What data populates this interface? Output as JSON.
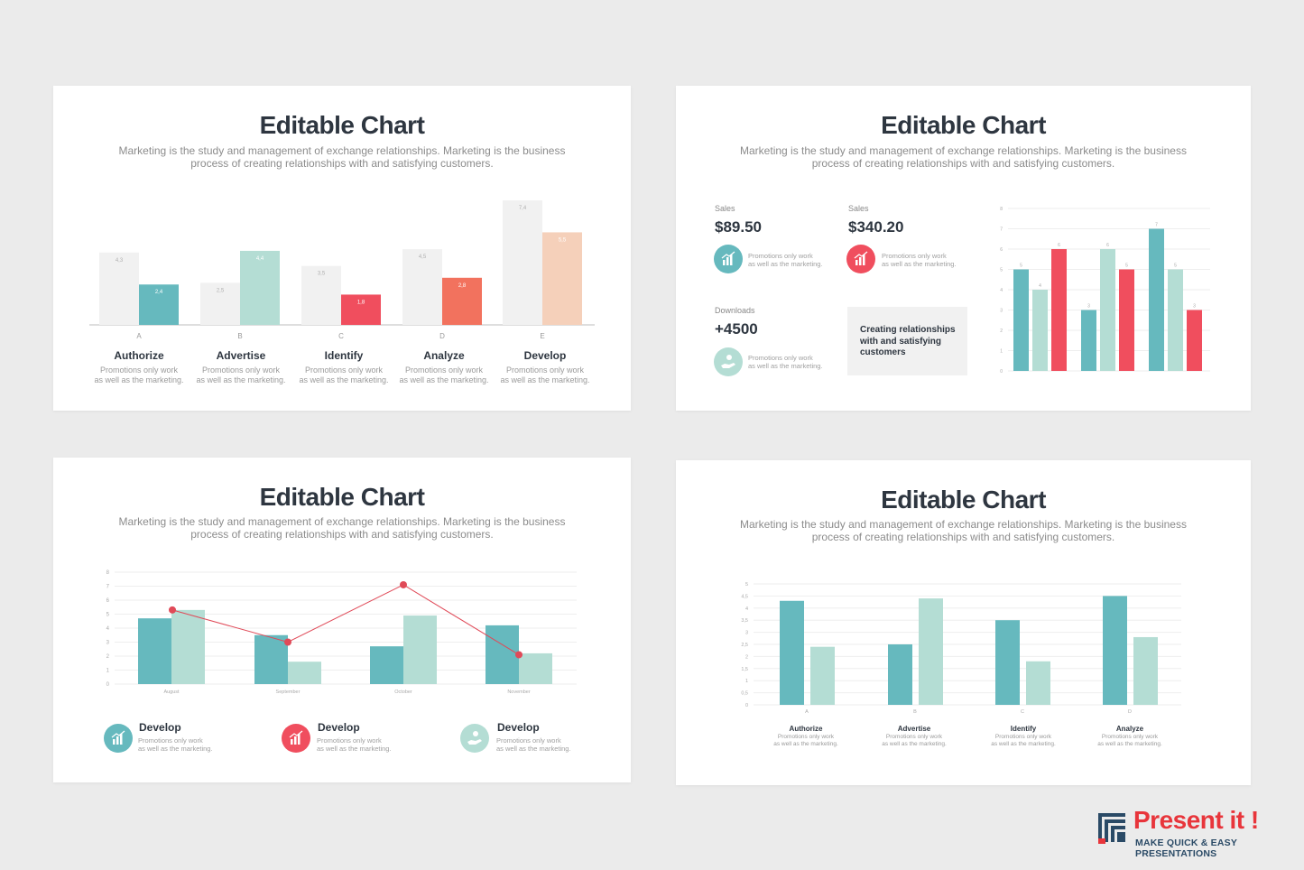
{
  "colors": {
    "teal": "#66b9be",
    "mint": "#b4ddd4",
    "red": "#f04e5e",
    "coral": "#f2725e",
    "peach": "#f5d0ba",
    "grey": "#f1f1f1",
    "line": "#e04a58"
  },
  "slide1": {
    "title": "Editable Chart",
    "subtitle1": "Marketing is the study and management of exchange relationships. Marketing is the business",
    "subtitle2": "process of creating relationships with and satisfying customers.",
    "items": [
      {
        "title": "Authorize",
        "desc1": "Promotions only work",
        "desc2": "as well as the marketing."
      },
      {
        "title": "Advertise",
        "desc1": "Promotions only work",
        "desc2": "as well as the marketing."
      },
      {
        "title": "Identify",
        "desc1": "Promotions only work",
        "desc2": "as well as the marketing."
      },
      {
        "title": "Analyze",
        "desc1": "Promotions only work",
        "desc2": "as well as the marketing."
      },
      {
        "title": "Develop",
        "desc1": "Promotions only work",
        "desc2": "as well as the marketing."
      }
    ]
  },
  "slide2": {
    "title": "Editable Chart",
    "subtitle1": "Marketing is the study and management of exchange relationships. Marketing is the business",
    "subtitle2": "process of creating relationships with and satisfying customers.",
    "stats": [
      {
        "label": "Sales",
        "value": "$89.50",
        "desc1": "Promotions only work",
        "desc2": "as well as the marketing.",
        "icon": "bar-chart-icon",
        "color": "teal"
      },
      {
        "label": "Sales",
        "value": "$340.20",
        "desc1": "Promotions only work",
        "desc2": "as well as the marketing.",
        "icon": "bar-chart-icon",
        "color": "red"
      },
      {
        "label": "Downloads",
        "value": "+4500",
        "desc1": "Promotions only work",
        "desc2": "as well as the marketing.",
        "icon": "hand-coin-icon",
        "color": "mint"
      }
    ],
    "box_text": "Creating relationships with and satisfying customers"
  },
  "slide3": {
    "title": "Editable Chart",
    "subtitle1": "Marketing is the study and management of exchange relationships. Marketing is the business",
    "subtitle2": "process of creating relationships with and satisfying customers.",
    "legend": [
      {
        "title": "Develop",
        "desc1": "Promotions only work",
        "desc2": "as well as the marketing.",
        "icon": "bar-chart-icon",
        "color": "teal"
      },
      {
        "title": "Develop",
        "desc1": "Promotions only work",
        "desc2": "as well as the marketing.",
        "icon": "bar-chart-icon",
        "color": "red"
      },
      {
        "title": "Develop",
        "desc1": "Promotions only work",
        "desc2": "as well as the marketing.",
        "icon": "hand-coin-icon",
        "color": "mint"
      }
    ]
  },
  "slide4": {
    "title": "Editable Chart",
    "subtitle1": "Marketing is the study and management of exchange relationships. Marketing is the business",
    "subtitle2": "process of creating relationships with and satisfying customers.",
    "items": [
      {
        "title": "Authorize",
        "desc1": "Promotions only work",
        "desc2": "as well as the marketing."
      },
      {
        "title": "Advertise",
        "desc1": "Promotions only work",
        "desc2": "as well as the marketing."
      },
      {
        "title": "Identify",
        "desc1": "Promotions only work",
        "desc2": "as well as the marketing."
      },
      {
        "title": "Analyze",
        "desc1": "Promotions only work",
        "desc2": "as well as the marketing."
      }
    ]
  },
  "logo": {
    "main": "Present it !",
    "tagline": "MAKE QUICK & EASY PRESENTATIONS"
  },
  "chart_data": [
    {
      "type": "bar",
      "categories": [
        "A",
        "B",
        "C",
        "D",
        "E"
      ],
      "series": [
        {
          "values": [
            4.3,
            2.5,
            3.5,
            4.5,
            7.4
          ],
          "colors": [
            "grey",
            "grey",
            "grey",
            "grey",
            "grey"
          ]
        },
        {
          "values": [
            2.4,
            4.4,
            1.8,
            2.8,
            5.5
          ],
          "colors": [
            "teal",
            "mint",
            "red",
            "coral",
            "peach"
          ]
        }
      ],
      "ylim": [
        0,
        7.4
      ],
      "data_labels": true
    },
    {
      "type": "bar",
      "categories": [
        "1",
        "2",
        "3"
      ],
      "series": [
        {
          "values": [
            5,
            3,
            7
          ],
          "color": "teal"
        },
        {
          "values": [
            4,
            6,
            5
          ],
          "color": "mint"
        },
        {
          "values": [
            6,
            5,
            3
          ],
          "color": "red"
        }
      ],
      "yticks": [
        0,
        1,
        2,
        3,
        4,
        5,
        6,
        7,
        8
      ],
      "ylim": [
        0,
        8
      ],
      "grid": true,
      "data_labels": true
    },
    {
      "type": "bar",
      "categories": [
        "August",
        "September",
        "October",
        "November"
      ],
      "series": [
        {
          "values": [
            4.7,
            3.5,
            2.7,
            4.2
          ],
          "color": "teal"
        },
        {
          "values": [
            5.3,
            1.6,
            4.9,
            2.2
          ],
          "color": "mint"
        },
        {
          "type": "line",
          "values": [
            5.3,
            3.0,
            7.1,
            2.1
          ],
          "color": "line"
        }
      ],
      "yticks": [
        0,
        1,
        2,
        3,
        4,
        5,
        6,
        7,
        8
      ],
      "ylim": [
        0,
        8
      ],
      "grid": true
    },
    {
      "type": "bar",
      "categories": [
        "A",
        "B",
        "C",
        "D"
      ],
      "series": [
        {
          "values": [
            4.3,
            2.5,
            3.5,
            4.5
          ],
          "color": "teal"
        },
        {
          "values": [
            2.4,
            4.4,
            1.8,
            2.8
          ],
          "color": "mint"
        }
      ],
      "yticks": [
        0,
        0.5,
        1,
        1.5,
        2,
        2.5,
        3,
        3.5,
        4,
        4.5,
        5
      ],
      "ylim": [
        0,
        5
      ],
      "grid": true
    }
  ]
}
